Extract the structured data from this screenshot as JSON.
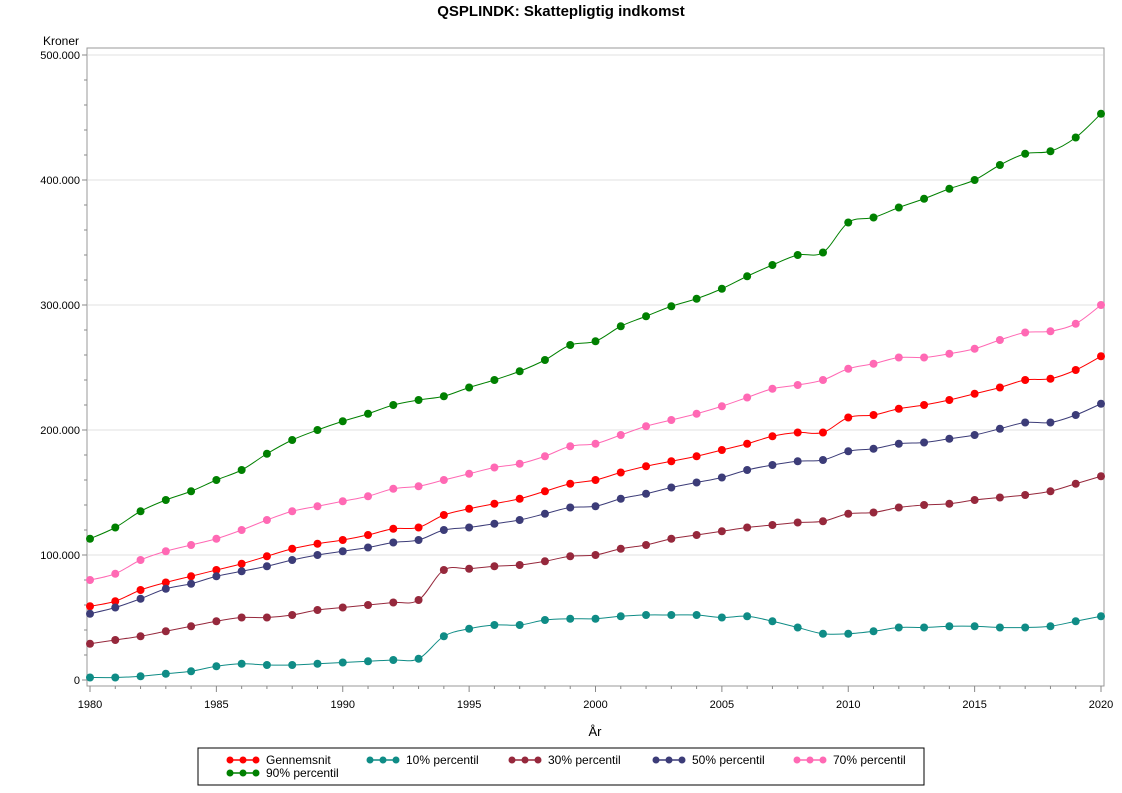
{
  "chart_data": {
    "type": "line",
    "title": "QSPLINDK:  Skattepligtig indkomst",
    "ylabel": "Kroner",
    "xlabel": "År",
    "xlim": [
      1980,
      2020
    ],
    "ylim": [
      0,
      500000
    ],
    "x_ticks": [
      1980,
      1985,
      1990,
      1995,
      2000,
      2005,
      2010,
      2015,
      2020
    ],
    "y_ticks": [
      0,
      100000,
      200000,
      300000,
      400000,
      500000
    ],
    "y_tick_labels": [
      "0",
      "100.000",
      "200.000",
      "300.000",
      "400.000",
      "500.000"
    ],
    "grid": "horizontal",
    "legend_position": "bottom",
    "x": [
      1980,
      1981,
      1982,
      1983,
      1984,
      1985,
      1986,
      1987,
      1988,
      1989,
      1990,
      1991,
      1992,
      1993,
      1994,
      1995,
      1996,
      1997,
      1998,
      1999,
      2000,
      2001,
      2002,
      2003,
      2004,
      2005,
      2006,
      2007,
      2008,
      2009,
      2010,
      2011,
      2012,
      2013,
      2014,
      2015,
      2016,
      2017,
      2018,
      2019,
      2020
    ],
    "series": [
      {
        "name": "Gennemsnit",
        "color": "#ff0000",
        "values": [
          59000,
          63000,
          72000,
          78000,
          83000,
          88000,
          93000,
          99000,
          105000,
          109000,
          112000,
          116000,
          121000,
          122000,
          132000,
          137000,
          141000,
          145000,
          151000,
          157000,
          160000,
          166000,
          171000,
          175000,
          179000,
          184000,
          189000,
          195000,
          198000,
          198000,
          210000,
          212000,
          217000,
          220000,
          224000,
          229000,
          234000,
          240000,
          241000,
          248000,
          259000
        ]
      },
      {
        "name": "10% percentil",
        "color": "#0f8c86",
        "values": [
          2000,
          2000,
          3000,
          5000,
          7000,
          11000,
          13000,
          12000,
          12000,
          13000,
          14000,
          15000,
          16000,
          17000,
          35000,
          41000,
          44000,
          44000,
          48000,
          49000,
          49000,
          51000,
          52000,
          52000,
          52000,
          50000,
          51000,
          47000,
          42000,
          37000,
          37000,
          39000,
          42000,
          42000,
          43000,
          43000,
          42000,
          42000,
          43000,
          47000,
          51000
        ]
      },
      {
        "name": "30% percentil",
        "color": "#96283c",
        "values": [
          29000,
          32000,
          35000,
          39000,
          43000,
          47000,
          50000,
          50000,
          52000,
          56000,
          58000,
          60000,
          62000,
          64000,
          88000,
          89000,
          91000,
          92000,
          95000,
          99000,
          100000,
          105000,
          108000,
          113000,
          116000,
          119000,
          122000,
          124000,
          126000,
          127000,
          133000,
          134000,
          138000,
          140000,
          141000,
          144000,
          146000,
          148000,
          151000,
          157000,
          163000
        ]
      },
      {
        "name": "50% percentil",
        "color": "#3c3c78",
        "values": [
          53000,
          58000,
          65000,
          73000,
          77000,
          83000,
          87000,
          91000,
          96000,
          100000,
          103000,
          106000,
          110000,
          112000,
          120000,
          122000,
          125000,
          128000,
          133000,
          138000,
          139000,
          145000,
          149000,
          154000,
          158000,
          162000,
          168000,
          172000,
          175000,
          176000,
          183000,
          185000,
          189000,
          190000,
          193000,
          196000,
          201000,
          206000,
          206000,
          212000,
          221000
        ]
      },
      {
        "name": "70% percentil",
        "color": "#ff69b4",
        "values": [
          80000,
          85000,
          96000,
          103000,
          108000,
          113000,
          120000,
          128000,
          135000,
          139000,
          143000,
          147000,
          153000,
          155000,
          160000,
          165000,
          170000,
          173000,
          179000,
          187000,
          189000,
          196000,
          203000,
          208000,
          213000,
          219000,
          226000,
          233000,
          236000,
          240000,
          249000,
          253000,
          258000,
          258000,
          261000,
          265000,
          272000,
          278000,
          279000,
          285000,
          300000
        ]
      },
      {
        "name": "90% percentil",
        "color": "#008000",
        "values": [
          113000,
          122000,
          135000,
          144000,
          151000,
          160000,
          168000,
          181000,
          192000,
          200000,
          207000,
          213000,
          220000,
          224000,
          227000,
          234000,
          240000,
          247000,
          256000,
          268000,
          271000,
          283000,
          291000,
          299000,
          305000,
          313000,
          323000,
          332000,
          340000,
          342000,
          366000,
          370000,
          378000,
          385000,
          393000,
          400000,
          412000,
          421000,
          423000,
          434000,
          453000
        ]
      }
    ]
  }
}
